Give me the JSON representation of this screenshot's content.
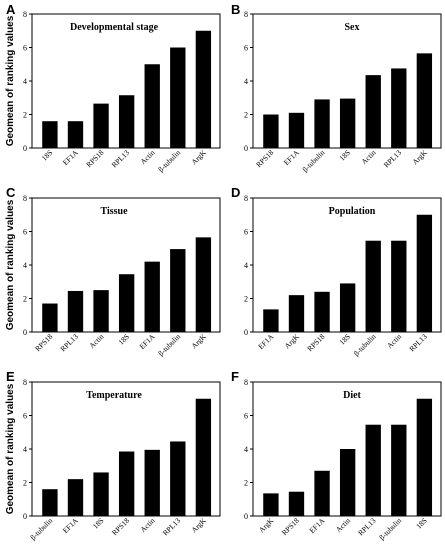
{
  "y_axis_label": "Geomean of ranking values",
  "colors": {
    "bar": "#000000",
    "axis": "#000000",
    "background": "#ffffff"
  },
  "chart_data": [
    {
      "panel": "A",
      "type": "bar",
      "title": "Developmental stage",
      "categories": [
        "18S",
        "EF1A",
        "RPS18",
        "RPL13",
        "Actin",
        "β-tubulin",
        "ArgK"
      ],
      "values": [
        1.6,
        1.6,
        2.65,
        3.15,
        5.0,
        6.0,
        7.0
      ],
      "ylim": [
        0,
        8
      ],
      "yticks": [
        0,
        2,
        4,
        6,
        8
      ]
    },
    {
      "panel": "B",
      "type": "bar",
      "title": "Sex",
      "categories": [
        "RPS18",
        "EF1A",
        "β-tubulin",
        "18S",
        "Actin",
        "RPL13",
        "ArgK"
      ],
      "values": [
        2.0,
        2.1,
        2.9,
        2.95,
        4.35,
        4.75,
        5.65
      ],
      "ylim": [
        0,
        8
      ],
      "yticks": [
        0,
        2,
        4,
        6,
        8
      ]
    },
    {
      "panel": "C",
      "type": "bar",
      "title": "Tissue",
      "categories": [
        "RPS18",
        "RPL13",
        "Actin",
        "18S",
        "EF1A",
        "β-tubulin",
        "ArgK"
      ],
      "values": [
        1.7,
        2.45,
        2.5,
        3.45,
        4.2,
        4.95,
        5.65
      ],
      "ylim": [
        0,
        8
      ],
      "yticks": [
        0,
        2,
        4,
        6,
        8
      ]
    },
    {
      "panel": "D",
      "type": "bar",
      "title": "Population",
      "categories": [
        "EF1A",
        "ArgK",
        "RPS18",
        "18S",
        "β-tubulin",
        "Actin",
        "RPL13"
      ],
      "values": [
        1.35,
        2.2,
        2.4,
        2.9,
        5.45,
        5.45,
        7.0
      ],
      "ylim": [
        0,
        8
      ],
      "yticks": [
        0,
        2,
        4,
        6,
        8
      ]
    },
    {
      "panel": "E",
      "type": "bar",
      "title": "Temperature",
      "categories": [
        "β-tubulin",
        "EF1A",
        "18S",
        "RPS18",
        "Actin",
        "RPL13",
        "ArgK"
      ],
      "values": [
        1.6,
        2.2,
        2.6,
        3.85,
        3.95,
        4.45,
        7.0
      ],
      "ylim": [
        0,
        8
      ],
      "yticks": [
        0,
        2,
        4,
        6,
        8
      ]
    },
    {
      "panel": "F",
      "type": "bar",
      "title": "Diet",
      "categories": [
        "ArgK",
        "RPS18",
        "EF1A",
        "Actin",
        "RPL13",
        "β-tubulin",
        "18S"
      ],
      "values": [
        1.35,
        1.45,
        2.7,
        4.0,
        5.45,
        5.45,
        7.0
      ],
      "ylim": [
        0,
        8
      ],
      "yticks": [
        0,
        2,
        4,
        6,
        8
      ]
    }
  ]
}
